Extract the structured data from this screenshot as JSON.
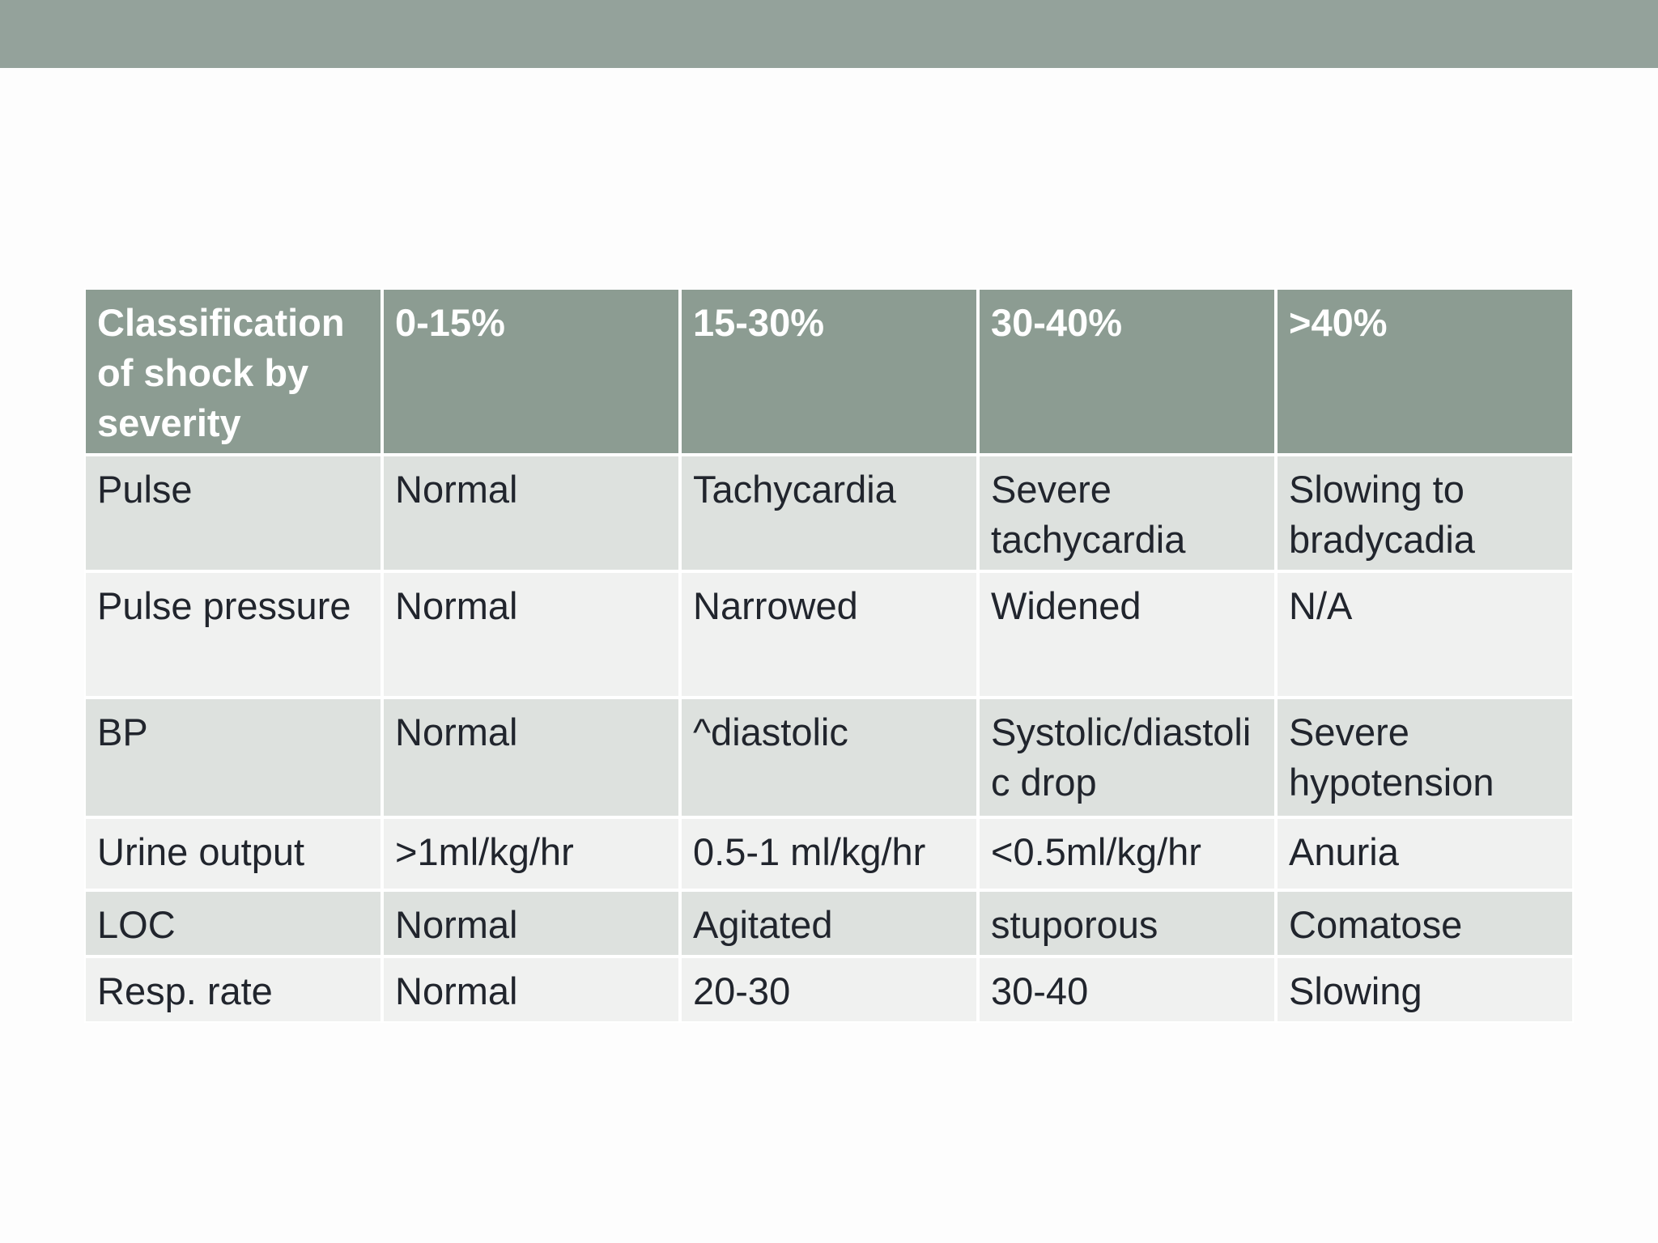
{
  "colors": {
    "band": "#94a29b",
    "header_bg": "#8c9c92",
    "header_text": "#ffffff",
    "row_odd": "#dde1de",
    "row_even": "#f0f1f0",
    "body_text": "#21252d"
  },
  "table": {
    "header": [
      "Classification of shock by severity",
      "0-15%",
      "15-30%",
      "30-40%",
      ">40%"
    ],
    "rows": [
      [
        "Pulse",
        "Normal",
        "Tachycardia",
        "Severe tachycardia",
        "Slowing to bradycadia"
      ],
      [
        "Pulse pressure",
        "Normal",
        "Narrowed",
        "Widened",
        "N/A"
      ],
      [
        "BP",
        "Normal",
        "^diastolic",
        "Systolic/diastolic drop",
        "Severe hypotension"
      ],
      [
        "Urine output",
        ">1ml/kg/hr",
        "0.5-1 ml/kg/hr",
        "<0.5ml/kg/hr",
        "Anuria"
      ],
      [
        "LOC",
        "Normal",
        "Agitated",
        "stuporous",
        "Comatose"
      ],
      [
        "Resp. rate",
        "Normal",
        "20-30",
        "30-40",
        "Slowing"
      ]
    ]
  }
}
